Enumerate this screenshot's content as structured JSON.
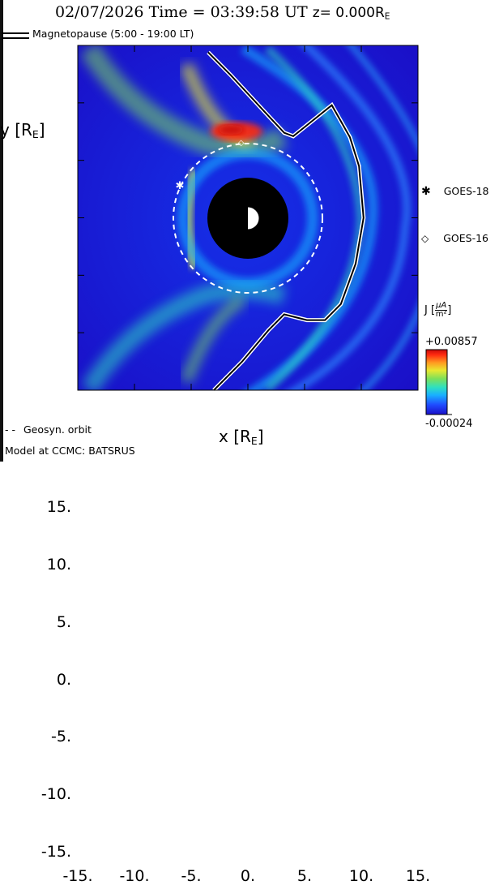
{
  "title": {
    "date": "02/07/2026",
    "time_label": "Time =",
    "time": "03:39:58",
    "timezone": "UT",
    "z_label": "z=",
    "z_value": "0.000R",
    "z_sub": "E"
  },
  "magnetopause_legend": "Magnetopause (5:00 - 19:00 LT)",
  "geosyn_legend": "Geosyn. orbit",
  "model_credit": "Model at CCMC: BATSRUS",
  "chart_data": {
    "type": "heatmap",
    "quantity": "J",
    "xlabel": "x [R",
    "xlabel_sub": "E",
    "xlabel_end": "]",
    "ylabel": "y [R",
    "ylabel_sub": "E",
    "ylabel_end": "]",
    "xlim": [
      -15,
      15
    ],
    "ylim": [
      -15,
      15
    ],
    "x_ticks": [
      "-15.",
      "-10.",
      "-5.",
      "0.",
      "5.",
      "10.",
      "15."
    ],
    "x_tick_values": [
      -15,
      -10,
      -5,
      0,
      5,
      10,
      15
    ],
    "y_ticks": [
      "15.",
      "10.",
      "5.",
      "0.",
      "-5.",
      "-10.",
      "-15."
    ],
    "y_tick_values": [
      15,
      10,
      5,
      0,
      -5,
      -10,
      -15
    ],
    "colorbar": {
      "label": "J",
      "unit_num": "μA",
      "unit_den": "m²",
      "max_label": "+0.00857",
      "min_label": "-0.00024",
      "max": 0.00857,
      "min": -0.00024,
      "colors": [
        "#1a10c8",
        "#1f4cff",
        "#19b0ff",
        "#2fe0c0",
        "#7ce05a",
        "#e8e830",
        "#ff9a20",
        "#ff2a10",
        "#c80a0a"
      ]
    },
    "inner_boundary_radius": 3.5,
    "geosynchronous_radius": 6.6,
    "magnetopause": [
      [
        -3.5,
        14.4
      ],
      [
        -1.5,
        12.4
      ],
      [
        1.5,
        9.2
      ],
      [
        3.2,
        7.4
      ],
      [
        4.0,
        7.1
      ],
      [
        7.4,
        9.8
      ],
      [
        9.0,
        7.0
      ],
      [
        9.8,
        4.5
      ],
      [
        10.2,
        0.0
      ],
      [
        9.5,
        -4.0
      ],
      [
        8.2,
        -7.5
      ],
      [
        6.8,
        -8.9
      ],
      [
        5.2,
        -8.9
      ],
      [
        3.2,
        -8.4
      ],
      [
        1.8,
        -9.8
      ],
      [
        -0.5,
        -12.5
      ],
      [
        -3.0,
        -15.0
      ]
    ],
    "satellites": [
      {
        "name": "GOES-18",
        "x": -6.0,
        "y": 2.8,
        "marker": "asterisk"
      },
      {
        "name": "GOES-16",
        "x": -0.6,
        "y": 6.6,
        "marker": "diamond"
      }
    ]
  }
}
